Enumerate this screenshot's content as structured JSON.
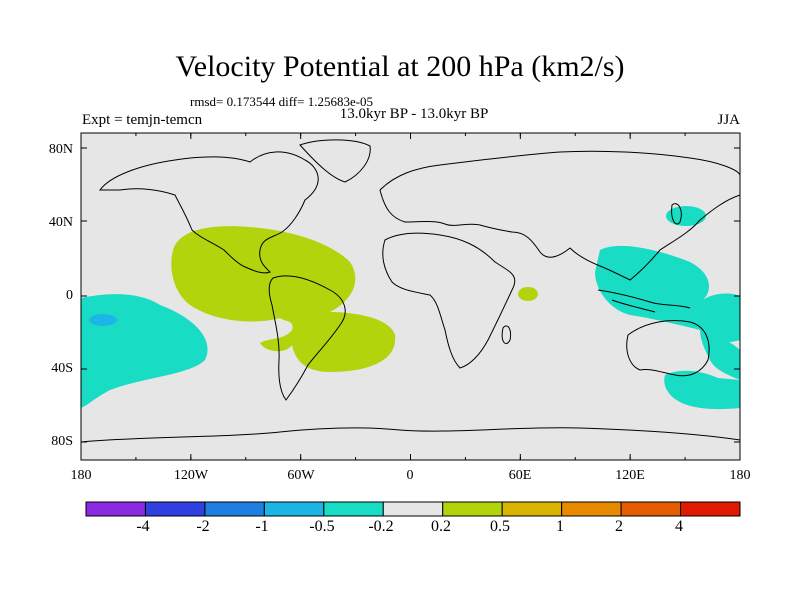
{
  "title": "Velocity Potential at 200 hPa (km2/s)",
  "stats": "rmsd= 0.173544 diff= 1.25683e-05",
  "subtitle": "13.0kyr BP - 13.0kyr BP",
  "experiment": "Expt = temjn-temcn",
  "season": "JJA",
  "lat_labels": [
    "80N",
    "40N",
    "0",
    "40S",
    "80S"
  ],
  "lon_labels": [
    "180",
    "120W",
    "60W",
    "0",
    "60E",
    "120E",
    "180"
  ],
  "colorbar": {
    "colors": [
      "#8a2be2",
      "#2f3fe0",
      "#1e7fe0",
      "#1db4e6",
      "#19dcc4",
      "#e6e6e6",
      "#b2d40c",
      "#d8b400",
      "#e88a00",
      "#e65c00",
      "#e01a00"
    ],
    "labels": [
      "-4",
      "-2",
      "-1",
      "-0.5",
      "-0.2",
      "0.2",
      "0.5",
      "1",
      "2",
      "4"
    ]
  },
  "colors": {
    "background_field": "#e6e6e6",
    "positive_field": "#b2d40c",
    "negative_field": "#19dcc4",
    "deep_negative": "#1db4e6"
  }
}
